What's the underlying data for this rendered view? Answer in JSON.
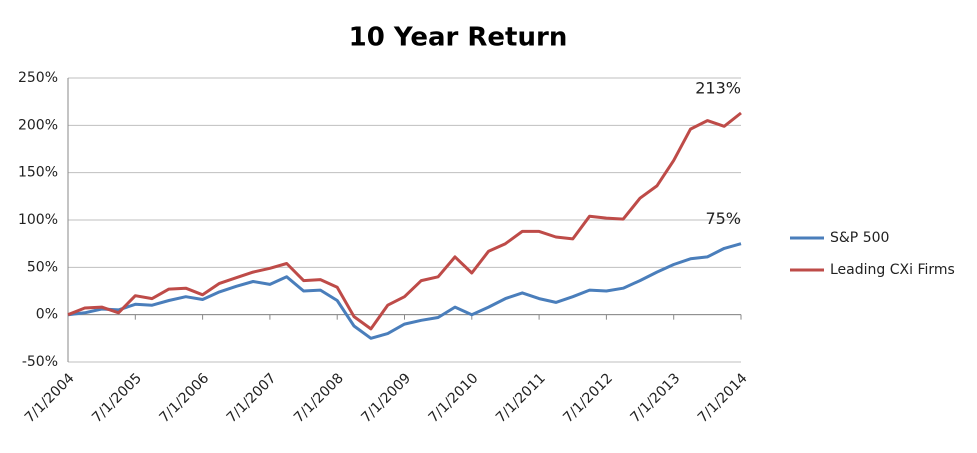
{
  "chart_data": {
    "type": "line",
    "title": "10 Year Return",
    "categories": [
      "7/1/2004",
      null,
      null,
      null,
      "7/1/2005",
      null,
      null,
      null,
      "7/1/2006",
      null,
      null,
      null,
      "7/1/2007",
      null,
      null,
      null,
      "7/1/2008",
      null,
      null,
      null,
      "7/1/2009",
      null,
      null,
      null,
      "7/1/2010",
      null,
      null,
      null,
      "7/1/2011",
      null,
      null,
      null,
      "7/1/2012",
      null,
      null,
      null,
      "7/1/2013",
      null,
      null,
      null,
      "7/1/2014"
    ],
    "series": [
      {
        "name": "S&P 500",
        "color": "#4a7ebb",
        "values": [
          0,
          2,
          6,
          5,
          11,
          10,
          15,
          19,
          16,
          24,
          30,
          35,
          32,
          40,
          25,
          26,
          15,
          -12,
          -25,
          -20,
          -10,
          -6,
          -3,
          8,
          0,
          8,
          17,
          23,
          17,
          13,
          19,
          26,
          25,
          28,
          36,
          45,
          53,
          59,
          61,
          70,
          75
        ],
        "value_labels": [
          null,
          null,
          null,
          null,
          null,
          null,
          null,
          null,
          null,
          null,
          null,
          null,
          null,
          null,
          null,
          null,
          null,
          null,
          null,
          null,
          null,
          null,
          null,
          null,
          null,
          null,
          null,
          null,
          null,
          null,
          null,
          null,
          null,
          null,
          null,
          null,
          null,
          null,
          null,
          null,
          "75%"
        ]
      },
      {
        "name": "Leading CXi Firms",
        "color": "#be4b48",
        "values": [
          0,
          7,
          8,
          2,
          20,
          17,
          27,
          28,
          21,
          33,
          39,
          45,
          49,
          54,
          36,
          37,
          29,
          -2,
          -15,
          10,
          19,
          36,
          40,
          61,
          44,
          67,
          75,
          88,
          88,
          82,
          80,
          104,
          102,
          101,
          123,
          136,
          163,
          196,
          205,
          199,
          213
        ],
        "value_labels": [
          null,
          null,
          null,
          null,
          null,
          null,
          null,
          null,
          null,
          null,
          null,
          null,
          null,
          null,
          null,
          null,
          null,
          null,
          null,
          null,
          null,
          null,
          null,
          null,
          null,
          null,
          null,
          null,
          null,
          null,
          null,
          null,
          null,
          null,
          null,
          null,
          null,
          null,
          null,
          null,
          "213%"
        ]
      }
    ],
    "ylim": [
      -50,
      250
    ],
    "yticks": [
      {
        "value": -50,
        "label": "-50%"
      },
      {
        "value": 0,
        "label": "0%"
      },
      {
        "value": 50,
        "label": "50%"
      },
      {
        "value": 100,
        "label": "100%"
      },
      {
        "value": 150,
        "label": "150%"
      },
      {
        "value": 200,
        "label": "200%"
      },
      {
        "value": 250,
        "label": "250%"
      }
    ],
    "grid": true,
    "legend": "right"
  }
}
